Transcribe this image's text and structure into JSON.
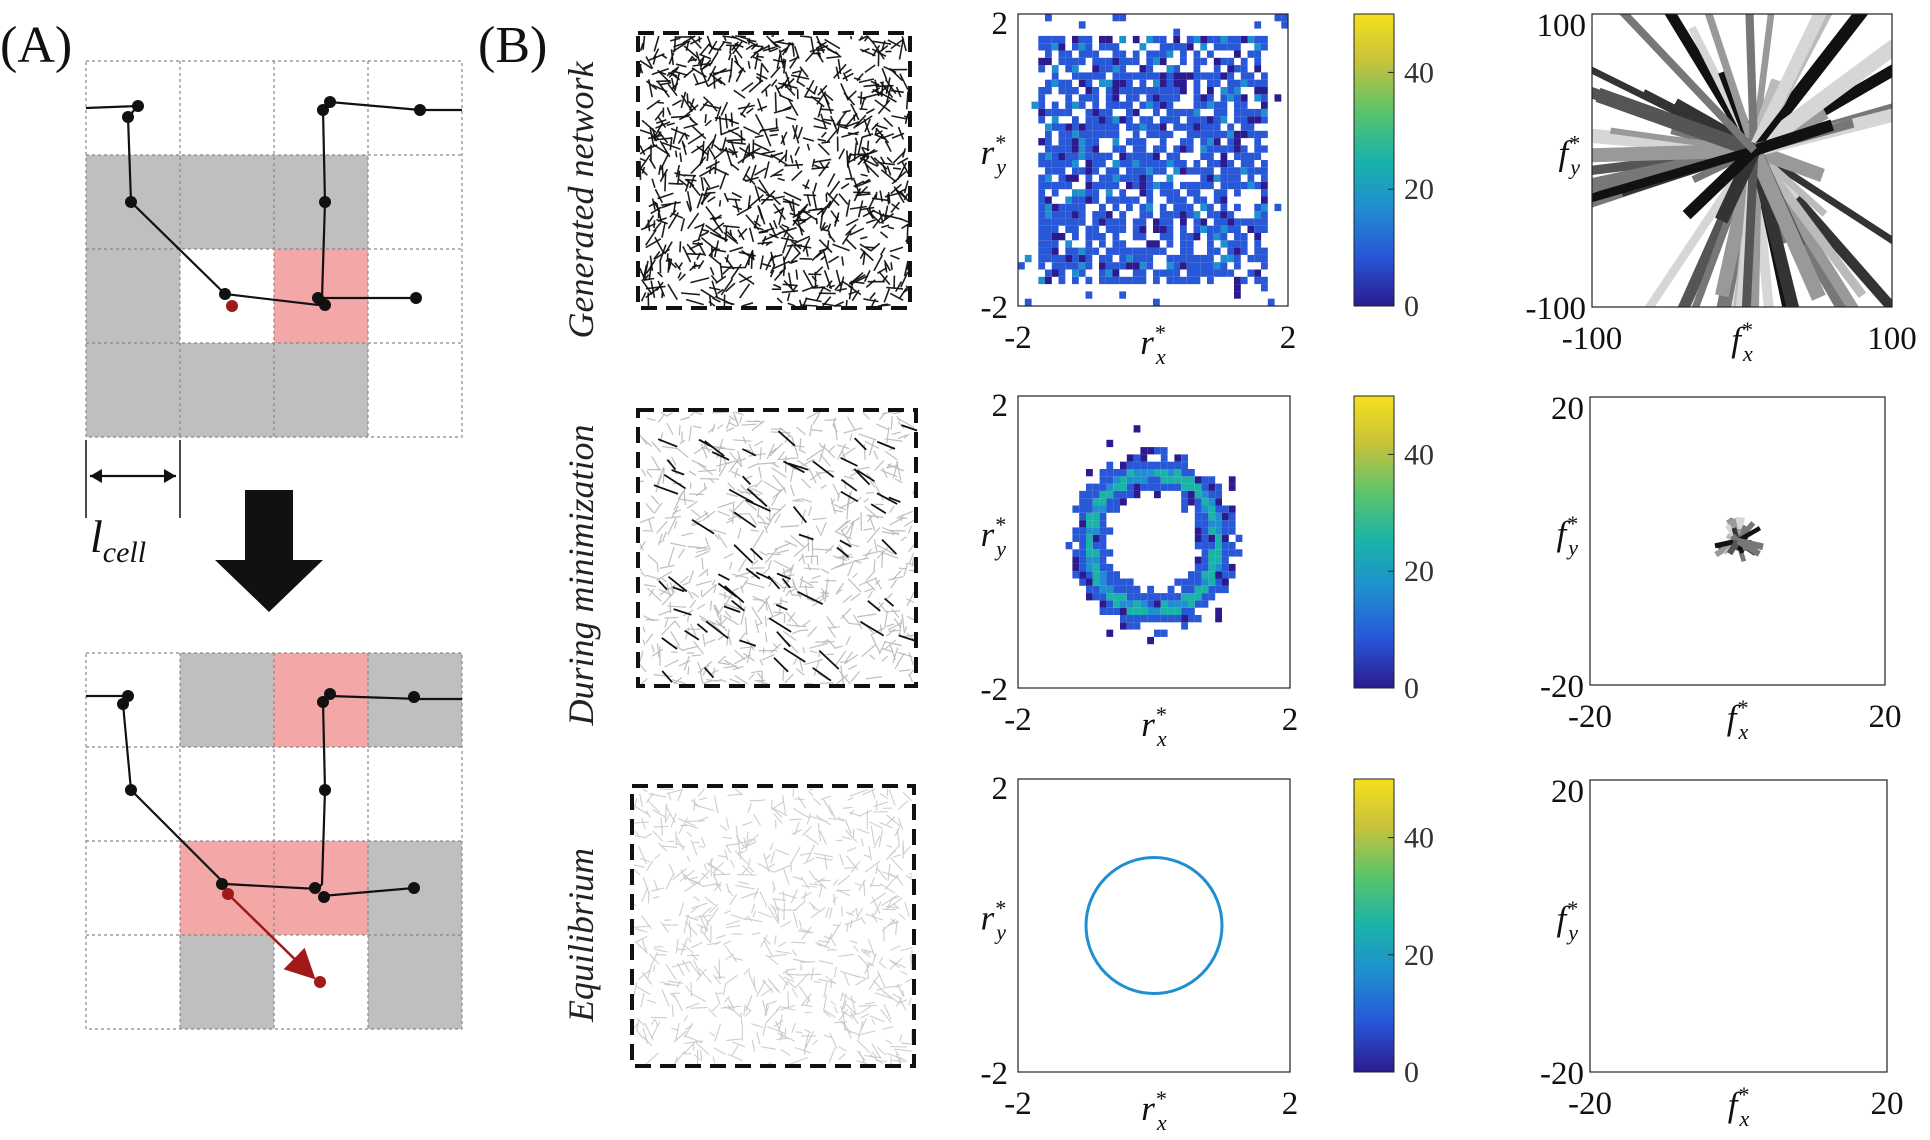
{
  "panel_a": {
    "label": "(A)",
    "length_label_main": "l",
    "length_label_sub": "cell"
  },
  "panel_b": {
    "label": "(B)",
    "row_labels": [
      "Generated network",
      "During minimization",
      "Equilibrium"
    ]
  },
  "colors": {
    "gray_cell": "#bfbfbf",
    "pink_cell": "#f4a7a7",
    "node": "#111111",
    "red_node": "#a01a1a",
    "cmap": [
      "#2b1b8f",
      "#2857d8",
      "#1f8fd0",
      "#19b3a8",
      "#5cc46a",
      "#c9c23a",
      "#f5e01c"
    ]
  },
  "chart_data": [
    {
      "type": "heatmap",
      "name": "Generated network position histogram",
      "xlabel": "r",
      "xsup": "*",
      "xsub": "x",
      "ylabel": "r",
      "ysup": "*",
      "ysub": "y",
      "xlim": [
        -2,
        2
      ],
      "ylim": [
        -2,
        2
      ],
      "x_ticks": [
        "-2",
        "2"
      ],
      "y_ticks": [
        "-2",
        "2"
      ],
      "colorbar_ticks": [
        "0",
        "20",
        "40"
      ],
      "colorbar_range": [
        0,
        50
      ]
    },
    {
      "type": "heatmap",
      "name": "During minimization position histogram",
      "xlabel": "r",
      "xsup": "*",
      "xsub": "x",
      "ylabel": "r",
      "ysup": "*",
      "ysub": "y",
      "xlim": [
        -2,
        2
      ],
      "ylim": [
        -2,
        2
      ],
      "x_ticks": [
        "-2",
        "2"
      ],
      "y_ticks": [
        "-2",
        "2"
      ],
      "colorbar_ticks": [
        "0",
        "20",
        "40"
      ],
      "colorbar_range": [
        0,
        50
      ]
    },
    {
      "type": "heatmap",
      "name": "Equilibrium position histogram",
      "xlabel": "r",
      "xsup": "*",
      "xsub": "x",
      "ylabel": "r",
      "ysup": "*",
      "ysub": "y",
      "xlim": [
        -2,
        2
      ],
      "ylim": [
        -2,
        2
      ],
      "x_ticks": [
        "-2",
        "2"
      ],
      "y_ticks": [
        "-2",
        "2"
      ],
      "colorbar_ticks": [
        "0",
        "20",
        "40"
      ],
      "colorbar_range": [
        0,
        50
      ]
    },
    {
      "type": "scatter",
      "name": "Generated network force vectors",
      "xlabel": "f",
      "xsup": "*",
      "xsub": "x",
      "ylabel": "f",
      "ysup": "*",
      "ysub": "y",
      "xlim": [
        -100,
        100
      ],
      "ylim": [
        -100,
        100
      ],
      "x_ticks": [
        "-100",
        "100"
      ],
      "y_ticks": [
        "-100",
        "100"
      ]
    },
    {
      "type": "scatter",
      "name": "During minimization force vectors",
      "xlabel": "f",
      "xsup": "*",
      "xsub": "x",
      "ylabel": "f",
      "ysup": "*",
      "ysub": "y",
      "xlim": [
        -20,
        20
      ],
      "ylim": [
        -20,
        20
      ],
      "x_ticks": [
        "-20",
        "20"
      ],
      "y_ticks": [
        "-20",
        "20"
      ]
    },
    {
      "type": "scatter",
      "name": "Equilibrium force vectors",
      "xlabel": "f",
      "xsup": "*",
      "xsub": "x",
      "ylabel": "f",
      "ysup": "*",
      "ysub": "y",
      "xlim": [
        -20,
        20
      ],
      "ylim": [
        -20,
        20
      ],
      "x_ticks": [
        "-20",
        "20"
      ],
      "y_ticks": [
        "-20",
        "20"
      ]
    }
  ]
}
